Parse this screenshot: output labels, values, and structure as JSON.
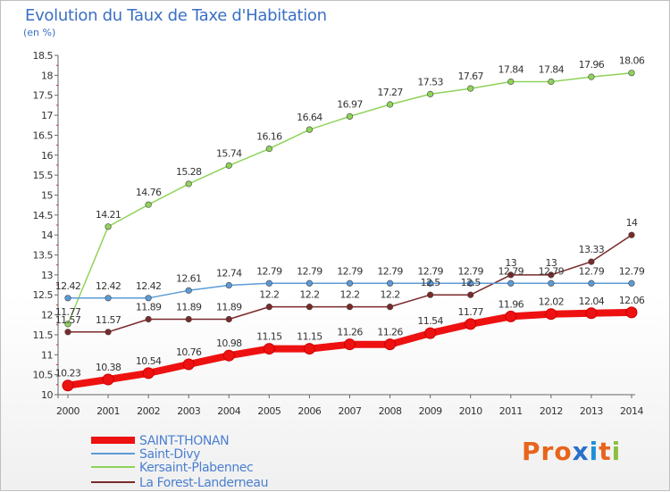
{
  "title": "Evolution du Taux de Taxe d'Habitation",
  "subtitle": "(en %)",
  "logo": "Proxiti",
  "chart_data": {
    "type": "line",
    "title": "Evolution du Taux de Taxe d'Habitation",
    "ylabel": "(en %)",
    "xlabel": "",
    "x": [
      "2000",
      "2001",
      "2002",
      "2003",
      "2004",
      "2005",
      "2006",
      "2007",
      "2008",
      "2009",
      "2010",
      "2011",
      "2012",
      "2013",
      "2014"
    ],
    "ylim": [
      10,
      18.5
    ],
    "yticks": [
      "10",
      "10.5",
      "11",
      "11.5",
      "12",
      "12.5",
      "13",
      "13.5",
      "14",
      "14.5",
      "15",
      "15.5",
      "16",
      "16.5",
      "17",
      "17.5",
      "18",
      "18.5"
    ],
    "grid": false,
    "legend_position": "bottom-left",
    "series": [
      {
        "name": "SAINT-THONAN",
        "color": "#ee1111",
        "values": [
          10.23,
          10.38,
          10.54,
          10.76,
          10.98,
          11.15,
          11.15,
          11.26,
          11.26,
          11.54,
          11.77,
          11.96,
          12.02,
          12.04,
          12.06
        ],
        "labels": [
          "10.23",
          "10.38",
          "10.54",
          "10.76",
          "10.98",
          "11.15",
          "11.15",
          "11.26",
          "11.26",
          "11.54",
          "11.77",
          "11.96",
          "12.02",
          "12.04",
          "12.06"
        ]
      },
      {
        "name": "Saint-Divy",
        "color": "#5b9bd5",
        "values": [
          12.42,
          12.42,
          12.42,
          12.61,
          12.74,
          12.79,
          12.79,
          12.79,
          12.79,
          12.79,
          12.79,
          12.79,
          12.79,
          12.79,
          12.79
        ],
        "labels": [
          "12.42",
          "12.42",
          "12.42",
          "12.61",
          "12.74",
          "12.79",
          "12.79",
          "12.79",
          "12.79",
          "12.79",
          "12.79",
          "12.79",
          "12.79",
          "12.79",
          "12.79"
        ]
      },
      {
        "name": "Kersaint-Plabennec",
        "color": "#8fd35a",
        "values": [
          11.77,
          14.21,
          14.76,
          15.28,
          15.74,
          16.16,
          16.64,
          16.97,
          17.27,
          17.53,
          17.67,
          17.84,
          17.84,
          17.96,
          18.06
        ],
        "labels": [
          "11.77",
          "14.21",
          "14.76",
          "15.28",
          "15.74",
          "16.16",
          "16.64",
          "16.97",
          "17.27",
          "17.53",
          "17.67",
          "17.84",
          "17.84",
          "17.96",
          "18.06"
        ]
      },
      {
        "name": "La Forest-Landerneau",
        "color": "#7a2a2a",
        "values": [
          11.57,
          11.57,
          11.89,
          11.89,
          11.89,
          12.2,
          12.2,
          12.2,
          12.2,
          12.5,
          12.5,
          13,
          13,
          13.33,
          14
        ],
        "labels": [
          "11.57",
          "11.57",
          "11.89",
          "11.89",
          "11.89",
          "12.2",
          "12.2",
          "12.2",
          "12.2",
          "12.5",
          "12.5",
          "13",
          "13",
          "13.33",
          "14"
        ]
      }
    ]
  }
}
